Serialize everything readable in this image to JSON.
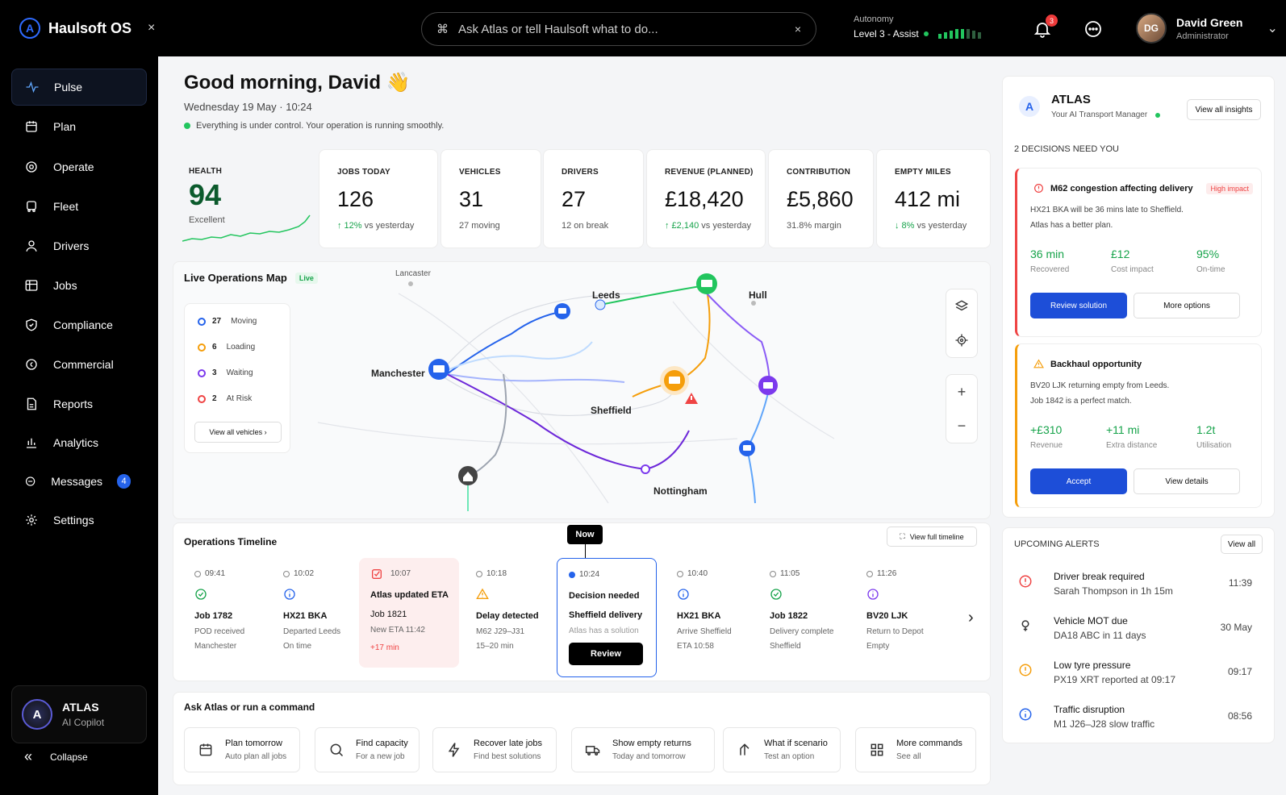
{
  "app": {
    "name": "Haulsoft OS",
    "close": "×"
  },
  "command": {
    "placeholder": "Ask Atlas or tell Haulsoft what to do...",
    "key": "⌘",
    "clear": "×"
  },
  "autonomy": {
    "label": "Autonomy",
    "level": "Level 3 - Assist"
  },
  "notifications": {
    "count": "3"
  },
  "user": {
    "name": "David Green",
    "role": "Administrator",
    "initials": "DG"
  },
  "sidebar": {
    "items": [
      {
        "label": "Pulse",
        "icon": "pulse-icon"
      },
      {
        "label": "Plan",
        "icon": "calendar-icon"
      },
      {
        "label": "Operate",
        "icon": "target-icon"
      },
      {
        "label": "Fleet",
        "icon": "truck-icon"
      },
      {
        "label": "Drivers",
        "icon": "person-icon"
      },
      {
        "label": "Jobs",
        "icon": "jobs-icon"
      },
      {
        "label": "Compliance",
        "icon": "shield-icon"
      },
      {
        "label": "Commercial",
        "icon": "coin-icon"
      },
      {
        "label": "Reports",
        "icon": "report-icon"
      },
      {
        "label": "Analytics",
        "icon": "chart-icon"
      },
      {
        "label": "Messages",
        "icon": "message-icon",
        "count": "4"
      },
      {
        "label": "Settings",
        "icon": "gear-icon"
      }
    ],
    "copilot": {
      "title": "ATLAS",
      "subtitle": "AI Copilot"
    },
    "collapse": "Collapse"
  },
  "greeting": {
    "title": "Good morning, David 👋",
    "date": "Wednesday 19 May · 10:24",
    "status": "Everything is under control. Your operation is running smoothly."
  },
  "kpis": [
    {
      "label": "HEALTH",
      "value": "94",
      "sub": "Excellent"
    },
    {
      "label": "JOBS TODAY",
      "value": "126",
      "delta": "↑ 12%",
      "sub": "vs yesterday"
    },
    {
      "label": "VEHICLES",
      "value": "31",
      "sub": "27 moving"
    },
    {
      "label": "DRIVERS",
      "value": "27",
      "sub": "12 on break"
    },
    {
      "label": "REVENUE (PLANNED)",
      "value": "£18,420",
      "delta": "↑ £2,140",
      "sub": "vs yesterday"
    },
    {
      "label": "CONTRIBUTION",
      "value": "£5,860",
      "sub": "31.8% margin"
    },
    {
      "label": "EMPTY MILES",
      "value": "412 mi",
      "delta": "↓ 8%",
      "sub": "vs yesterday"
    }
  ],
  "map": {
    "title": "Live Operations Map",
    "live": "Live",
    "legend": [
      {
        "count": "27",
        "label": "Moving",
        "color": "#2563eb"
      },
      {
        "count": "6",
        "label": "Loading",
        "color": "#f59e0b"
      },
      {
        "count": "3",
        "label": "Waiting",
        "color": "#7c3aed"
      },
      {
        "count": "2",
        "label": "At Risk",
        "color": "#ef4444"
      }
    ],
    "view_all": "View all vehicles ›",
    "cities": {
      "lancaster": "Lancaster",
      "leeds": "Leeds",
      "hull": "Hull",
      "manchester": "Manchester",
      "sheffield": "Sheffield",
      "nottingham": "Nottingham"
    },
    "zoom_in": "+",
    "zoom_out": "−"
  },
  "timeline": {
    "title": "Operations Timeline",
    "view_full": "View full timeline",
    "now": "Now",
    "events": [
      {
        "time": "09:41",
        "t1": "Job 1782",
        "t2": "POD received",
        "t3": "Manchester"
      },
      {
        "time": "10:02",
        "t1": "HX21 BKA",
        "t2": "Departed Leeds",
        "t3": "On time"
      },
      {
        "time": "10:07",
        "t1": "Atlas updated ETA",
        "t2": "Job 1821",
        "t3": "New ETA 11:42",
        "t4": "+17 min"
      },
      {
        "time": "10:18",
        "t1": "Delay detected",
        "t2": "M62 J29–J31",
        "t3": "15–20 min"
      },
      {
        "time": "10:24",
        "t1": "Decision needed",
        "t2": "Sheffield delivery",
        "t3": "Atlas has a solution",
        "btn": "Review"
      },
      {
        "time": "10:40",
        "t1": "HX21 BKA",
        "t2": "Arrive Sheffield",
        "t3": "ETA 10:58"
      },
      {
        "time": "11:05",
        "t1": "Job 1822",
        "t2": "Delivery complete",
        "t3": "Sheffield"
      },
      {
        "time": "11:26",
        "t1": "BV20 LJK",
        "t2": "Return to Depot",
        "t3": "Empty"
      }
    ]
  },
  "ask": {
    "title": "Ask Atlas or run a command",
    "commands": [
      {
        "a": "Plan tomorrow",
        "b": "Auto plan all jobs"
      },
      {
        "a": "Find capacity",
        "b": "For a new job"
      },
      {
        "a": "Recover late jobs",
        "b": "Find best solutions"
      },
      {
        "a": "Show empty returns",
        "b": "Today and tomorrow"
      },
      {
        "a": "What if scenario",
        "b": "Test an option"
      },
      {
        "a": "More commands",
        "b": "See all"
      }
    ]
  },
  "atlas": {
    "name": "ATLAS",
    "subtitle": "Your AI Transport Manager",
    "view_all": "View all insights",
    "decisions_title": "2 DECISIONS NEED YOU",
    "d1": {
      "title": "M62 congestion affecting delivery",
      "impact": "High impact",
      "line1": "HX21 BKA will be 36 mins late to Sheffield.",
      "line2": "Atlas has a better plan.",
      "m1v": "36 min",
      "m1l": "Recovered",
      "m2v": "£12",
      "m2l": "Cost impact",
      "m3v": "95%",
      "m3l": "On-time",
      "primary": "Review solution",
      "secondary": "More options"
    },
    "d2": {
      "title": "Backhaul opportunity",
      "line1": "BV20 LJK returning empty from Leeds.",
      "line2": "Job 1842 is a perfect match.",
      "m1v": "+£310",
      "m1l": "Revenue",
      "m2v": "+11 mi",
      "m2l": "Extra distance",
      "m3v": "1.2t",
      "m3l": "Utilisation",
      "primary": "Accept",
      "secondary": "View details"
    }
  },
  "alerts": {
    "title": "UPCOMING ALERTS",
    "view_all": "View all",
    "items": [
      {
        "a": "Driver break required",
        "b": "Sarah Thompson in 1h 15m",
        "t": "11:39",
        "color": "#ef4444"
      },
      {
        "a": "Vehicle MOT due",
        "b": "DA18 ABC in 11 days",
        "t": "30 May",
        "color": "#333333"
      },
      {
        "a": "Low tyre pressure",
        "b": "PX19 XRT reported at 09:17",
        "t": "09:17",
        "color": "#f59e0b"
      },
      {
        "a": "Traffic disruption",
        "b": "M1 J26–J28 slow traffic",
        "t": "08:56",
        "color": "#2563eb"
      }
    ]
  }
}
